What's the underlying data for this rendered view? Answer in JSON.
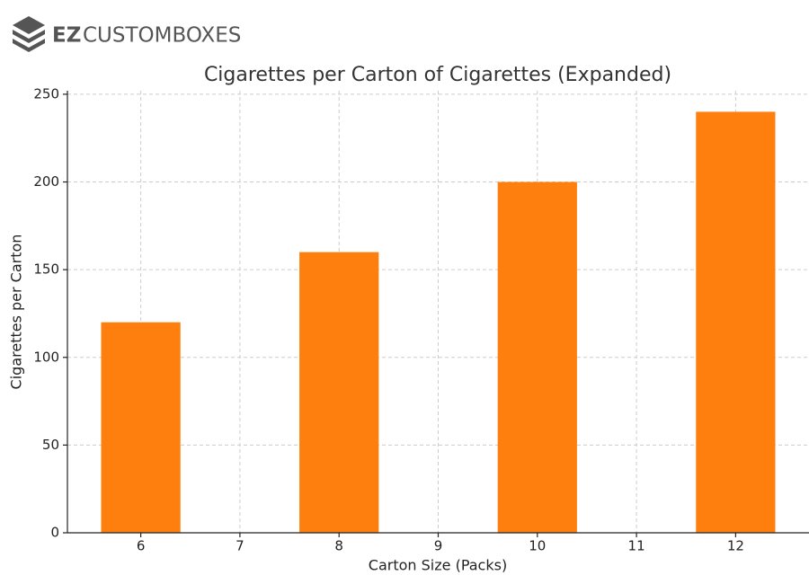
{
  "logo": {
    "bold": "EZ",
    "text": "CUSTOMBOXES"
  },
  "chart_data": {
    "type": "bar",
    "title": "Cigarettes per Carton of Cigarettes (Expanded)",
    "x_label": "Carton Size (Packs)",
    "y_label": "Cigarettes per Carton",
    "x": [
      6,
      8,
      10,
      12
    ],
    "values": [
      120,
      160,
      200,
      240
    ],
    "color": "#ff7f0e",
    "xlim": [
      5.26,
      12.74
    ],
    "xticks": [
      6,
      7,
      8,
      9,
      10,
      11,
      12
    ],
    "ylim": [
      0,
      252
    ],
    "yticks": [
      0,
      50,
      100,
      150,
      200,
      250
    ],
    "grid": true
  }
}
